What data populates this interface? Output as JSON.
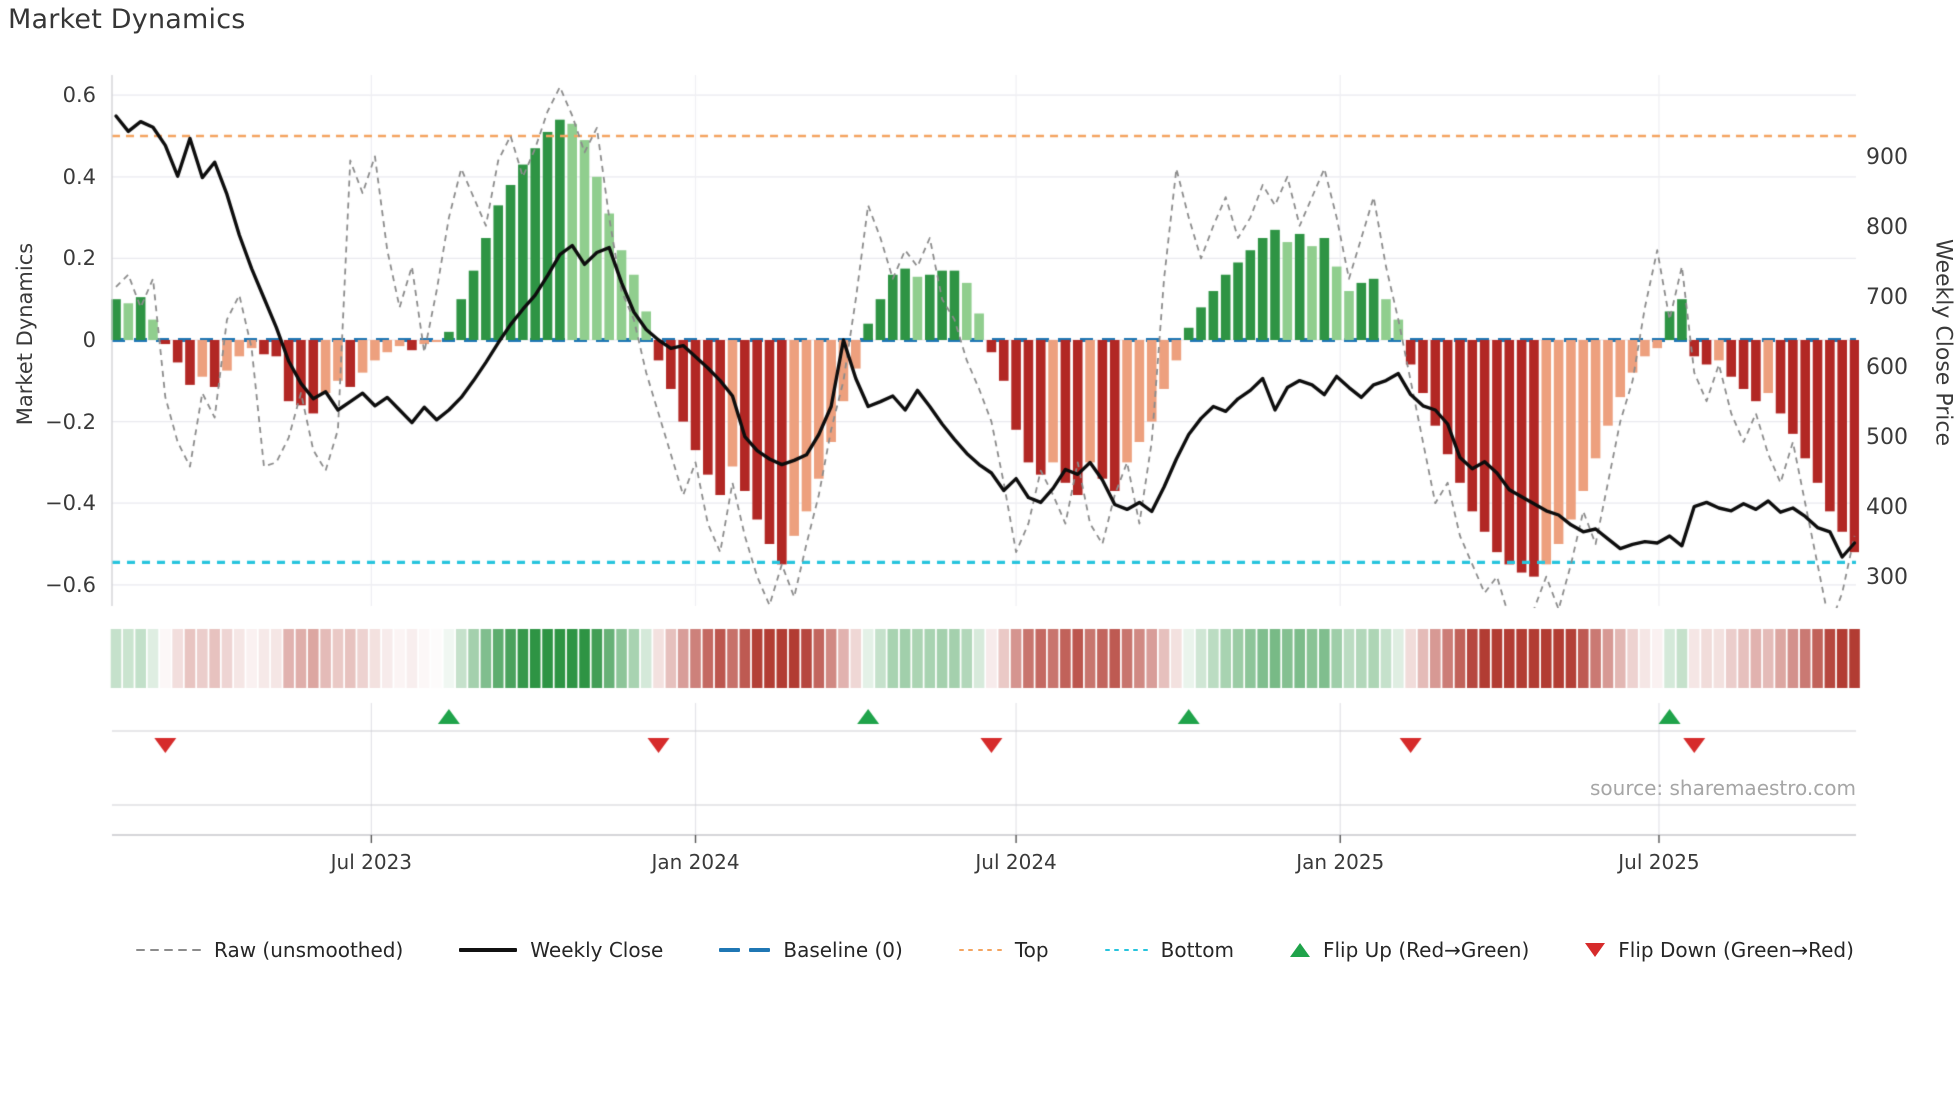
{
  "title": "Market Dynamics",
  "source_text": "source: sharemaestro.com",
  "axes": {
    "left_label": "Market Dynamics",
    "right_label": "Weekly Close Price",
    "left_ticks": [
      "0.6",
      "0.4",
      "0.2",
      "0",
      "−0.2",
      "−0.4",
      "−0.6"
    ],
    "left_tick_values": [
      0.6,
      0.4,
      0.2,
      0,
      -0.2,
      -0.4,
      -0.6
    ],
    "right_ticks": [
      "900",
      "800",
      "700",
      "600",
      "500",
      "400",
      "300"
    ],
    "right_tick_values": [
      900,
      800,
      700,
      600,
      500,
      400,
      300
    ],
    "x_ticks": [
      "Jul 2023",
      "Jan 2024",
      "Jul 2024",
      "Jan 2025",
      "Jul 2025"
    ],
    "x_tick_weeks": [
      20.71,
      47.0,
      73.0,
      99.29,
      125.14
    ]
  },
  "chart_data": {
    "type": "bar+line",
    "title": "Market Dynamics",
    "x_unit": "week",
    "x_start": "2023-02-06",
    "x_step_days": 7,
    "weeks": 142,
    "ylim_left": [
      -0.7,
      0.65
    ],
    "ylim_right": [
      280,
      980
    ],
    "grid": true,
    "legend_position": "bottom",
    "reference_lines": {
      "baseline": 0,
      "top": 0.5,
      "bottom": -0.545
    },
    "flip_up_weeks": [
      27,
      61,
      87,
      126
    ],
    "flip_down_weeks": [
      4,
      44,
      71,
      105,
      128
    ],
    "series": [
      {
        "name": "Market Dynamics (smoothed bars)",
        "type": "bar",
        "axis": "left",
        "values": [
          0.1,
          0.09,
          0.105,
          0.05,
          -0.01,
          -0.055,
          -0.11,
          -0.09,
          -0.115,
          -0.075,
          -0.04,
          -0.02,
          -0.035,
          -0.04,
          -0.15,
          -0.16,
          -0.18,
          -0.13,
          -0.1,
          -0.115,
          -0.08,
          -0.05,
          -0.03,
          -0.015,
          -0.025,
          -0.01,
          -0.005,
          0.02,
          0.1,
          0.17,
          0.25,
          0.33,
          0.38,
          0.43,
          0.47,
          0.51,
          0.54,
          0.53,
          0.49,
          0.4,
          0.31,
          0.22,
          0.16,
          0.07,
          -0.05,
          -0.12,
          -0.2,
          -0.27,
          -0.33,
          -0.38,
          -0.31,
          -0.37,
          -0.44,
          -0.5,
          -0.55,
          -0.48,
          -0.42,
          -0.34,
          -0.25,
          -0.15,
          -0.07,
          0.04,
          0.1,
          0.16,
          0.175,
          0.155,
          0.16,
          0.17,
          0.17,
          0.14,
          0.065,
          -0.03,
          -0.1,
          -0.22,
          -0.3,
          -0.33,
          -0.3,
          -0.35,
          -0.38,
          -0.3,
          -0.34,
          -0.37,
          -0.3,
          -0.25,
          -0.2,
          -0.12,
          -0.05,
          0.03,
          0.08,
          0.12,
          0.16,
          0.19,
          0.22,
          0.25,
          0.27,
          0.24,
          0.26,
          0.23,
          0.25,
          0.18,
          0.12,
          0.14,
          0.15,
          0.1,
          0.05,
          -0.06,
          -0.13,
          -0.21,
          -0.28,
          -0.35,
          -0.42,
          -0.47,
          -0.52,
          -0.55,
          -0.57,
          -0.58,
          -0.55,
          -0.5,
          -0.44,
          -0.37,
          -0.29,
          -0.21,
          -0.14,
          -0.08,
          -0.04,
          -0.02,
          0.07,
          0.1,
          -0.04,
          -0.06,
          -0.05,
          -0.09,
          -0.12,
          -0.15,
          -0.13,
          -0.18,
          -0.23,
          -0.29,
          -0.35,
          -0.42,
          -0.47,
          -0.52
        ]
      },
      {
        "name": "Raw (unsmoothed)",
        "type": "line",
        "style": "dashed",
        "axis": "left",
        "values": [
          0.13,
          0.16,
          0.08,
          0.15,
          -0.14,
          -0.25,
          -0.31,
          -0.13,
          -0.19,
          0.05,
          0.11,
          -0.02,
          -0.31,
          -0.3,
          -0.24,
          -0.13,
          -0.27,
          -0.32,
          -0.22,
          0.44,
          0.36,
          0.45,
          0.22,
          0.08,
          0.18,
          -0.03,
          0.12,
          0.3,
          0.42,
          0.35,
          0.28,
          0.44,
          0.5,
          0.4,
          0.47,
          0.56,
          0.62,
          0.55,
          0.46,
          0.52,
          0.3,
          0.12,
          0.05,
          -0.08,
          -0.18,
          -0.28,
          -0.38,
          -0.3,
          -0.45,
          -0.52,
          -0.35,
          -0.48,
          -0.58,
          -0.65,
          -0.55,
          -0.63,
          -0.5,
          -0.38,
          -0.22,
          -0.1,
          0.1,
          0.33,
          0.25,
          0.15,
          0.22,
          0.18,
          0.25,
          0.1,
          0.05,
          -0.05,
          -0.12,
          -0.2,
          -0.35,
          -0.52,
          -0.45,
          -0.32,
          -0.38,
          -0.45,
          -0.3,
          -0.45,
          -0.5,
          -0.38,
          -0.3,
          -0.45,
          -0.25,
          0.15,
          0.42,
          0.3,
          0.2,
          0.28,
          0.35,
          0.25,
          0.3,
          0.38,
          0.33,
          0.4,
          0.28,
          0.35,
          0.42,
          0.3,
          0.15,
          0.25,
          0.35,
          0.18,
          0.05,
          -0.1,
          -0.25,
          -0.4,
          -0.35,
          -0.48,
          -0.55,
          -0.62,
          -0.58,
          -0.68,
          -0.74,
          -0.66,
          -0.58,
          -0.66,
          -0.55,
          -0.42,
          -0.5,
          -0.35,
          -0.2,
          -0.1,
          0.08,
          0.22,
          0.05,
          0.18,
          -0.08,
          -0.15,
          -0.06,
          -0.18,
          -0.25,
          -0.18,
          -0.28,
          -0.35,
          -0.25,
          -0.4,
          -0.55,
          -0.7,
          -0.62,
          -0.48
        ]
      },
      {
        "name": "Weekly Close",
        "type": "line",
        "axis": "right",
        "values": [
          960,
          938,
          952,
          944,
          918,
          874,
          928,
          872,
          894,
          848,
          790,
          742,
          700,
          658,
          610,
          578,
          556,
          566,
          540,
          552,
          564,
          546,
          558,
          540,
          522,
          544,
          526,
          540,
          558,
          582,
          608,
          636,
          662,
          684,
          704,
          732,
          762,
          775,
          748,
          765,
          772,
          722,
          680,
          655,
          640,
          628,
          632,
          616,
          600,
          582,
          560,
          502,
          482,
          470,
          462,
          468,
          476,
          505,
          545,
          640,
          585,
          545,
          552,
          560,
          540,
          568,
          545,
          520,
          498,
          478,
          462,
          450,
          425,
          442,
          415,
          408,
          428,
          455,
          448,
          465,
          440,
          405,
          398,
          408,
          395,
          430,
          470,
          505,
          528,
          545,
          538,
          556,
          568,
          585,
          540,
          572,
          582,
          576,
          562,
          588,
          572,
          558,
          576,
          582,
          592,
          562,
          546,
          540,
          520,
          472,
          456,
          466,
          450,
          426,
          416,
          406,
          396,
          390,
          376,
          366,
          370,
          356,
          342,
          348,
          352,
          350,
          360,
          346,
          402,
          408,
          400,
          396,
          406,
          398,
          410,
          394,
          400,
          388,
          372,
          366,
          330,
          350
        ]
      }
    ]
  },
  "legend": [
    {
      "label": "Raw (unsmoothed)",
      "sample": "dash-line",
      "color": "#8c8c8c"
    },
    {
      "label": "Weekly Close",
      "sample": "solid-line",
      "color": "#111111"
    },
    {
      "label": "Baseline (0)",
      "sample": "dash2",
      "color": "#1f77b4"
    },
    {
      "label": "Top",
      "sample": "dots",
      "color": "#f4a460"
    },
    {
      "label": "Bottom",
      "sample": "dots",
      "color": "#27c4dd"
    },
    {
      "label": "Flip Up (Red→Green)",
      "sample": "tri-up",
      "color": "#1fa34a"
    },
    {
      "label": "Flip Down (Green→Red)",
      "sample": "tri-down",
      "color": "#d62b2b"
    }
  ],
  "colors": {
    "bar_pos_strong": "#2e9444",
    "bar_pos_weak": "#90ce8e",
    "bar_neg_strong": "#b22724",
    "bar_neg_weak": "#eda07e",
    "close_line": "#0d0d0d",
    "raw_line": "#8c8c8c",
    "baseline": "#1f77b4",
    "top_line": "#f4a460",
    "bottom_line": "#27c4dd",
    "flip_up": "#1fa34a",
    "flip_down": "#d62b2b",
    "heat_pos": "#2e9444",
    "heat_neg": "#b23c33",
    "grid": "#eaeaef",
    "spine": "#cfcfd4",
    "axis_line": "#c6c6cb",
    "tick_mark": "#555555"
  }
}
